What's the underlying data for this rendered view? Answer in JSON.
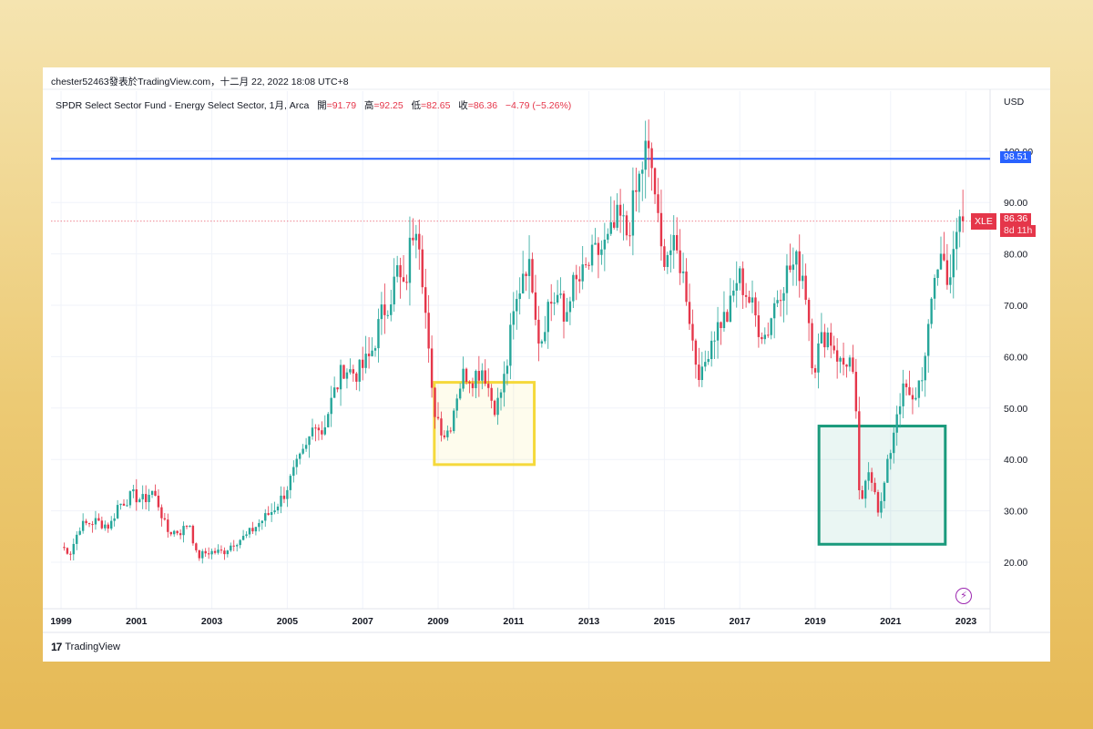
{
  "header": {
    "publisher": "chester52463發表於TradingView.com，十二月 22, 2022 18:08 UTC+8",
    "symbol_desc": "SPDR Select Sector Fund - Energy Select Sector, 1月, Arca",
    "open_label": "開",
    "open_value": "=91.79",
    "high_label": "高",
    "high_value": "=92.25",
    "low_label": "低",
    "low_value": "=82.65",
    "close_label": "收",
    "close_value": "=86.36",
    "change": "−4.79 (−5.26%)",
    "currency": "USD"
  },
  "footer": {
    "logo_mark": "17",
    "logo_text": "TradingView"
  },
  "badges": {
    "hline_price": "98.51",
    "ticker": "XLE",
    "last_price": "86.36",
    "countdown": "8d 11h"
  },
  "colors": {
    "up": "#26a69a",
    "down": "#e5364a",
    "hline": "#2962ff",
    "box_yellow": "#f5d93b",
    "box_green": "#1a9a7c",
    "grid": "#f0f3fa"
  },
  "icons": {
    "flash": "lightning-icon"
  },
  "chart_data": {
    "type": "candlestick",
    "title": "",
    "ylim": [
      12,
      115
    ],
    "y_ticks": [
      "20.00",
      "30.00",
      "40.00",
      "50.00",
      "60.00",
      "70.00",
      "80.00",
      "90.00",
      "100.00"
    ],
    "x_ticks": [
      "1999",
      "2001",
      "2003",
      "2005",
      "2007",
      "2009",
      "2011",
      "2013",
      "2015",
      "2017",
      "2019",
      "2021",
      "2023"
    ],
    "horizontal_line": 98.51,
    "last_price_line": 86.36,
    "boxes": [
      {
        "color": "yellow",
        "x_start": 2008.9,
        "x_end": 2011.55,
        "y_low": 39,
        "y_high": 55
      },
      {
        "color": "green",
        "x_start": 2019.1,
        "x_end": 2022.45,
        "y_low": 23.5,
        "y_high": 46.5
      }
    ],
    "close_series": {
      "name": "XLE monthly close",
      "anchors": [
        [
          1999.0,
          23
        ],
        [
          1999.25,
          22
        ],
        [
          1999.5,
          27
        ],
        [
          1999.9,
          28
        ],
        [
          2000.3,
          27
        ],
        [
          2000.5,
          31
        ],
        [
          2000.9,
          33
        ],
        [
          2001.2,
          32
        ],
        [
          2001.4,
          34
        ],
        [
          2001.6,
          31
        ],
        [
          2001.8,
          26
        ],
        [
          2002.2,
          26
        ],
        [
          2002.4,
          28
        ],
        [
          2002.6,
          21
        ],
        [
          2002.9,
          22
        ],
        [
          2003.3,
          22
        ],
        [
          2003.6,
          24
        ],
        [
          2003.9,
          25
        ],
        [
          2004.3,
          28
        ],
        [
          2004.6,
          30
        ],
        [
          2004.9,
          33
        ],
        [
          2005.2,
          38
        ],
        [
          2005.5,
          42
        ],
        [
          2005.75,
          48
        ],
        [
          2005.9,
          45
        ],
        [
          2006.2,
          52
        ],
        [
          2006.5,
          58
        ],
        [
          2006.7,
          57
        ],
        [
          2006.9,
          57
        ],
        [
          2007.2,
          60
        ],
        [
          2007.5,
          68
        ],
        [
          2007.8,
          73
        ],
        [
          2007.9,
          77
        ],
        [
          2008.1,
          72
        ],
        [
          2008.3,
          84
        ],
        [
          2008.45,
          88
        ],
        [
          2008.6,
          75
        ],
        [
          2008.75,
          60
        ],
        [
          2008.85,
          51
        ],
        [
          2009.0,
          48
        ],
        [
          2009.15,
          45
        ],
        [
          2009.3,
          46
        ],
        [
          2009.5,
          53
        ],
        [
          2009.7,
          57
        ],
        [
          2009.9,
          56
        ],
        [
          2010.2,
          58
        ],
        [
          2010.4,
          52
        ],
        [
          2010.55,
          50
        ],
        [
          2010.8,
          57
        ],
        [
          2010.95,
          66
        ],
        [
          2011.1,
          71
        ],
        [
          2011.3,
          79
        ],
        [
          2011.5,
          75
        ],
        [
          2011.7,
          62
        ],
        [
          2011.9,
          70
        ],
        [
          2012.2,
          72
        ],
        [
          2012.35,
          66
        ],
        [
          2012.5,
          73
        ],
        [
          2012.8,
          75
        ],
        [
          2013.0,
          78
        ],
        [
          2013.2,
          80
        ],
        [
          2013.5,
          82
        ],
        [
          2013.8,
          87
        ],
        [
          2014.0,
          84
        ],
        [
          2014.2,
          90
        ],
        [
          2014.5,
          100
        ],
        [
          2014.7,
          96
        ],
        [
          2014.9,
          80
        ],
        [
          2015.2,
          81
        ],
        [
          2015.4,
          79
        ],
        [
          2015.6,
          72
        ],
        [
          2015.8,
          60
        ],
        [
          2016.0,
          56
        ],
        [
          2016.2,
          63
        ],
        [
          2016.5,
          67
        ],
        [
          2016.7,
          68
        ],
        [
          2016.95,
          76
        ],
        [
          2017.2,
          72
        ],
        [
          2017.5,
          66
        ],
        [
          2017.7,
          64
        ],
        [
          2017.9,
          70
        ],
        [
          2018.1,
          74
        ],
        [
          2018.3,
          77
        ],
        [
          2018.5,
          78
        ],
        [
          2018.7,
          76
        ],
        [
          2018.85,
          66
        ],
        [
          2018.95,
          57
        ],
        [
          2019.1,
          62
        ],
        [
          2019.3,
          65
        ],
        [
          2019.5,
          62
        ],
        [
          2019.7,
          58
        ],
        [
          2019.9,
          60
        ],
        [
          2020.05,
          53
        ],
        [
          2020.2,
          29
        ],
        [
          2020.4,
          38
        ],
        [
          2020.55,
          36
        ],
        [
          2020.7,
          29
        ],
        [
          2020.85,
          36
        ],
        [
          2021.0,
          42
        ],
        [
          2021.2,
          51
        ],
        [
          2021.4,
          54
        ],
        [
          2021.55,
          50
        ],
        [
          2021.75,
          55
        ],
        [
          2021.95,
          60
        ],
        [
          2022.15,
          76
        ],
        [
          2022.35,
          80
        ],
        [
          2022.55,
          75
        ],
        [
          2022.7,
          80
        ],
        [
          2022.85,
          88
        ],
        [
          2022.95,
          91.79
        ],
        [
          2023.0,
          86.36
        ]
      ]
    }
  }
}
